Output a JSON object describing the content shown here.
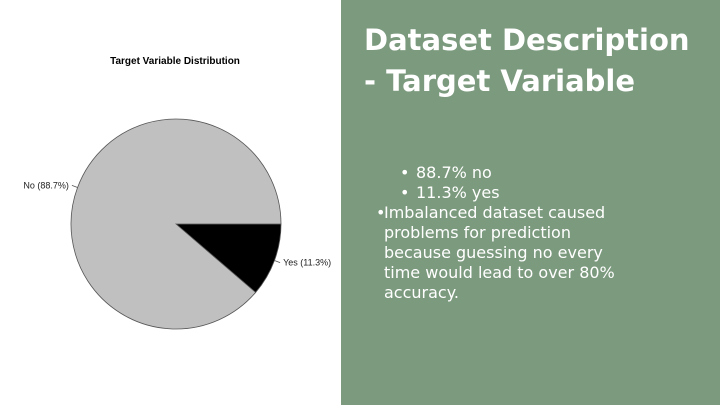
{
  "slide": {
    "title_line1": "Dataset Description",
    "title_line2": "- Target Variable",
    "bullets": [
      "88.7% no",
      "11.3% yes",
      "Imbalanced dataset caused problems for prediction because guessing no every time would lead to over 80% accuracy."
    ],
    "bullet_glyph": "•",
    "panel_color": "#7c9a7e"
  },
  "chart_data": {
    "type": "pie",
    "title": "Target Variable Distribution",
    "slices": [
      {
        "label": "No (88.7%)",
        "value": 88.7,
        "color": "#c0c0c0"
      },
      {
        "label": "Yes (11.3%)",
        "value": 11.3,
        "color": "#000000"
      }
    ]
  }
}
